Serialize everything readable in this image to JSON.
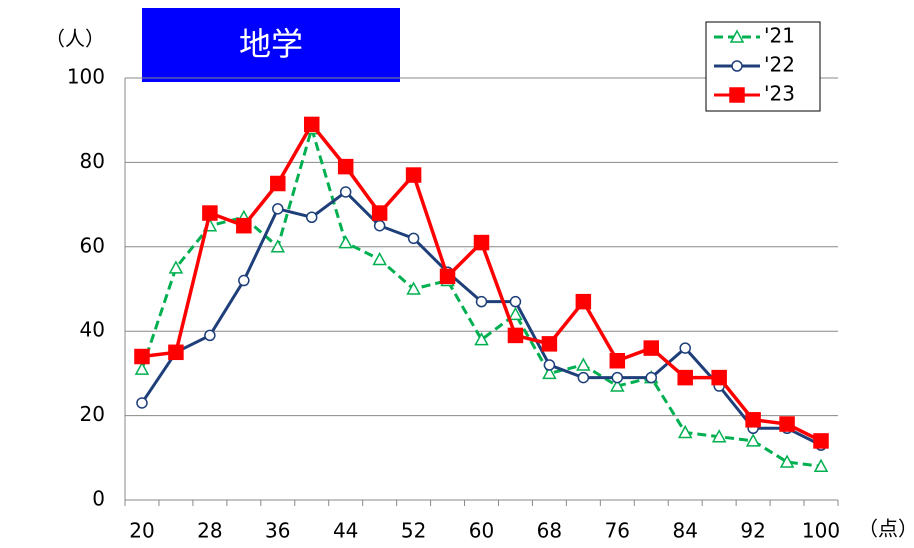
{
  "chart_data": {
    "type": "line",
    "title": "地学",
    "y_label": "（人）",
    "x_label": "（点）",
    "categories": [
      "20",
      null,
      "28",
      null,
      "36",
      null,
      "44",
      null,
      "52",
      null,
      "60",
      null,
      "68",
      null,
      "76",
      null,
      "84",
      null,
      "92",
      null,
      "100"
    ],
    "series": [
      {
        "name": "'21",
        "color": "#00b050",
        "marker": "triangle",
        "dashed": true,
        "values": [
          31,
          55,
          65,
          67,
          60,
          88,
          61,
          57,
          50,
          52,
          38,
          44,
          30,
          32,
          27,
          29,
          16,
          15,
          14,
          9,
          8
        ]
      },
      {
        "name": "'22",
        "color": "#1f3f7a",
        "marker": "circle",
        "dashed": false,
        "values": [
          23,
          35,
          39,
          52,
          69,
          67,
          73,
          65,
          62,
          54,
          47,
          47,
          32,
          29,
          29,
          29,
          36,
          27,
          17,
          17,
          13
        ]
      },
      {
        "name": "'23",
        "color": "#ff0000",
        "marker": "square",
        "dashed": false,
        "values": [
          34,
          35,
          68,
          65,
          75,
          89,
          79,
          68,
          77,
          53,
          61,
          39,
          37,
          47,
          33,
          36,
          29,
          29,
          19,
          18,
          14
        ]
      }
    ],
    "ylim": [
      0,
      100
    ],
    "yticks": [
      0,
      20,
      40,
      60,
      80,
      100
    ],
    "grid": true,
    "legend": "top-right"
  }
}
